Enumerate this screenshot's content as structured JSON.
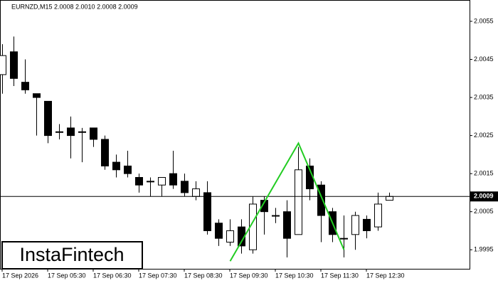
{
  "chart_data": {
    "type": "candlestick",
    "info": "EURNZD,M15  2.0008 2.0010 2.0008 2.0009",
    "logo": "InstaFintech",
    "categories": [
      "17 Sep 2026",
      null,
      null,
      null,
      "17 Sep 05:30",
      null,
      null,
      null,
      "17 Sep 06:30",
      null,
      null,
      null,
      "17 Sep 07:30",
      null,
      null,
      null,
      "17 Sep 08:30",
      null,
      null,
      null,
      "17 Sep 09:30",
      null,
      null,
      null,
      "17 Sep 10:30",
      null,
      null,
      null,
      "17 Sep 11:30",
      null,
      null,
      null,
      "17 Sep 12:30",
      null,
      null
    ],
    "open": [
      2.0041,
      2.0047,
      2.0039,
      2.0036,
      2.0034,
      2.0026,
      2.0027,
      2.0026,
      2.0027,
      2.0024,
      2.0018,
      2.0017,
      2.0014,
      2.0013,
      2.0012,
      2.0015,
      2.0013,
      2.0009,
      2.001,
      2.0002,
      1.9997,
      2.0001,
      1.9995,
      2.0008,
      2.0004,
      2.0005,
      1.9999,
      2.0017,
      2.0012,
      2.0005,
      1.9998,
      1.9999,
      2.0003,
      2.0001,
      2.0008
    ],
    "high": [
      2.0049,
      2.0051,
      2.0045,
      2.0036,
      2.0034,
      2.0028,
      2.003,
      2.0027,
      2.0027,
      2.0025,
      2.002,
      2.0021,
      2.0015,
      2.0014,
      2.0014,
      2.0021,
      2.0015,
      2.0013,
      2.0013,
      2.0003,
      2.0003,
      2.0003,
      2.0009,
      2.0009,
      2.0006,
      2.0008,
      2.0022,
      2.0019,
      2.0013,
      2.0006,
      2.0004,
      2.0005,
      2.0004,
      2.001,
      2.001
    ],
    "low": [
      2.0036,
      2.0038,
      2.0036,
      2.0025,
      2.0023,
      2.0024,
      2.0019,
      2.0018,
      2.0022,
      2.0016,
      2.0014,
      2.0014,
      2.001,
      2.0009,
      2.0009,
      2.0011,
      2.0009,
      2.0008,
      1.9999,
      1.9996,
      1.9996,
      1.9994,
      1.9994,
      1.9999,
      2.0002,
      1.9993,
      1.9999,
      2.0008,
      1.9997,
      1.9997,
      1.9993,
      1.9995,
      1.9998,
      2.0,
      2.0008
    ],
    "close": [
      2.0046,
      2.004,
      2.0037,
      2.0035,
      2.0025,
      2.0026,
      2.0025,
      2.0026,
      2.0024,
      2.0017,
      2.0016,
      2.0015,
      2.0012,
      2.0013,
      2.0014,
      2.0012,
      2.001,
      2.0011,
      2.0,
      1.9998,
      2.0,
      1.9996,
      2.0007,
      2.0005,
      2.0004,
      1.9998,
      2.0016,
      2.0011,
      2.0004,
      1.9999,
      1.9998,
      2.0004,
      2.0,
      2.0007,
      2.0009
    ],
    "pattern": {
      "color": "#22cc22",
      "x": [
        20,
        26,
        30
      ],
      "y": [
        1.9992,
        2.0023,
        1.9995
      ]
    },
    "current_price": 2.0009,
    "ylim": [
      1.999,
      2.00606
    ],
    "yticks": [
      1.9995,
      2.0005,
      2.0015,
      2.0025,
      2.0035,
      2.0045,
      2.0055
    ]
  }
}
